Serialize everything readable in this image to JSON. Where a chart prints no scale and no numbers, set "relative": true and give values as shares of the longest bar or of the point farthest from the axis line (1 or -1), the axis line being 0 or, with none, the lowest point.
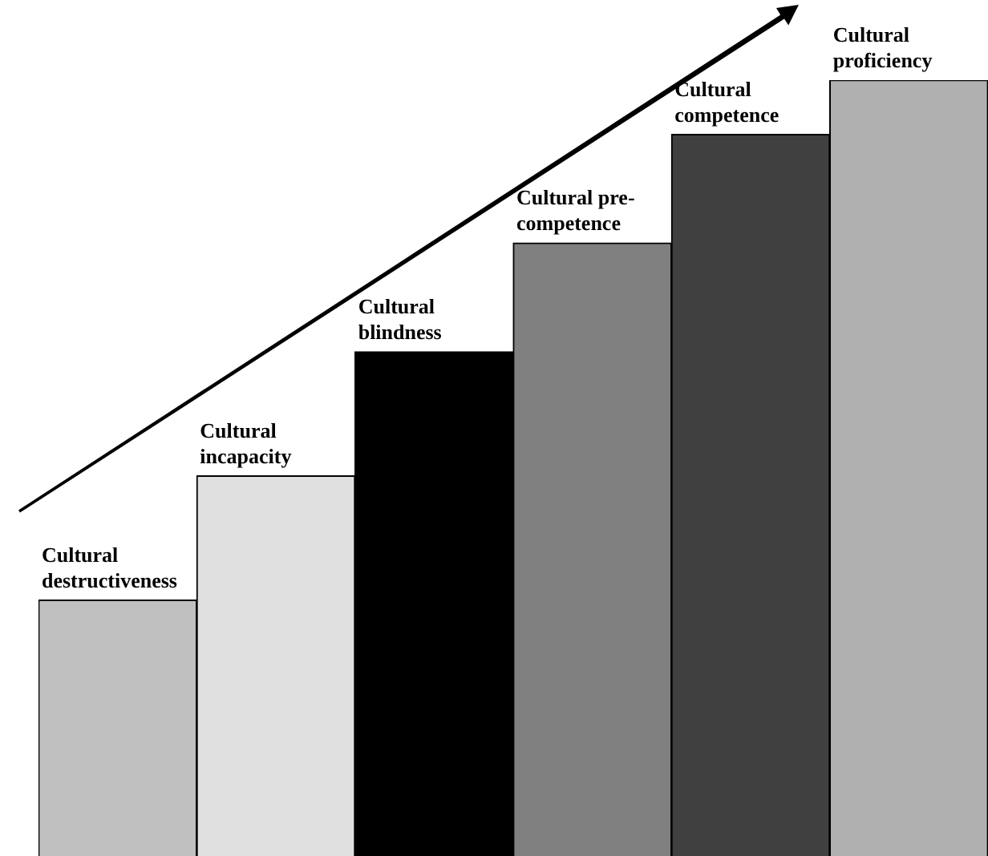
{
  "chart_data": {
    "type": "bar",
    "relative": true,
    "categories": [
      "Cultural destructiveness",
      "Cultural incapacity",
      "Cultural blindness",
      "Cultural pre-competence",
      "Cultural competence",
      "Cultural proficiency"
    ],
    "values": [
      0.33,
      0.49,
      0.65,
      0.79,
      0.93,
      1
    ],
    "colors": [
      "#c0c0c0",
      "#e0e0e0",
      "#000000",
      "#808080",
      "#404040",
      "#b0b0b0"
    ],
    "grid": false,
    "legend": false
  }
}
